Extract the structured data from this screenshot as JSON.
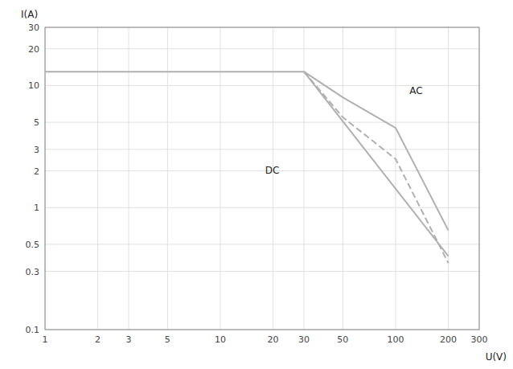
{
  "chart_data": {
    "type": "line",
    "log": true,
    "grid": true,
    "xlabel": "U(V)",
    "ylabel": "I(A)",
    "xlim": [
      1,
      300
    ],
    "ylim": [
      0.1,
      30
    ],
    "xticks": [
      1,
      2,
      3,
      5,
      10,
      20,
      30,
      50,
      100,
      200,
      300
    ],
    "yticks": [
      0.1,
      0.3,
      0.5,
      1,
      2,
      3,
      5,
      10,
      20,
      30
    ],
    "series": [
      {
        "x": [
          1,
          30,
          200
        ],
        "values": [
          13,
          13,
          0.4
        ],
        "color": "#b0b0b0",
        "line_style": "solid"
      },
      {
        "x": [
          30,
          50,
          100,
          200
        ],
        "values": [
          13,
          8,
          4.5,
          0.65
        ],
        "color": "#b0b0b0",
        "line_style": "solid"
      },
      {
        "x": [
          30,
          50,
          100,
          200
        ],
        "values": [
          13,
          5.5,
          2.5,
          0.35
        ],
        "color": "#b0b0b0",
        "line_style": "dashed"
      }
    ],
    "annotations": [
      {
        "text": "DC",
        "x": 18,
        "y": 1.9
      },
      {
        "text": "AC",
        "x": 120,
        "y": 8.5
      }
    ]
  }
}
